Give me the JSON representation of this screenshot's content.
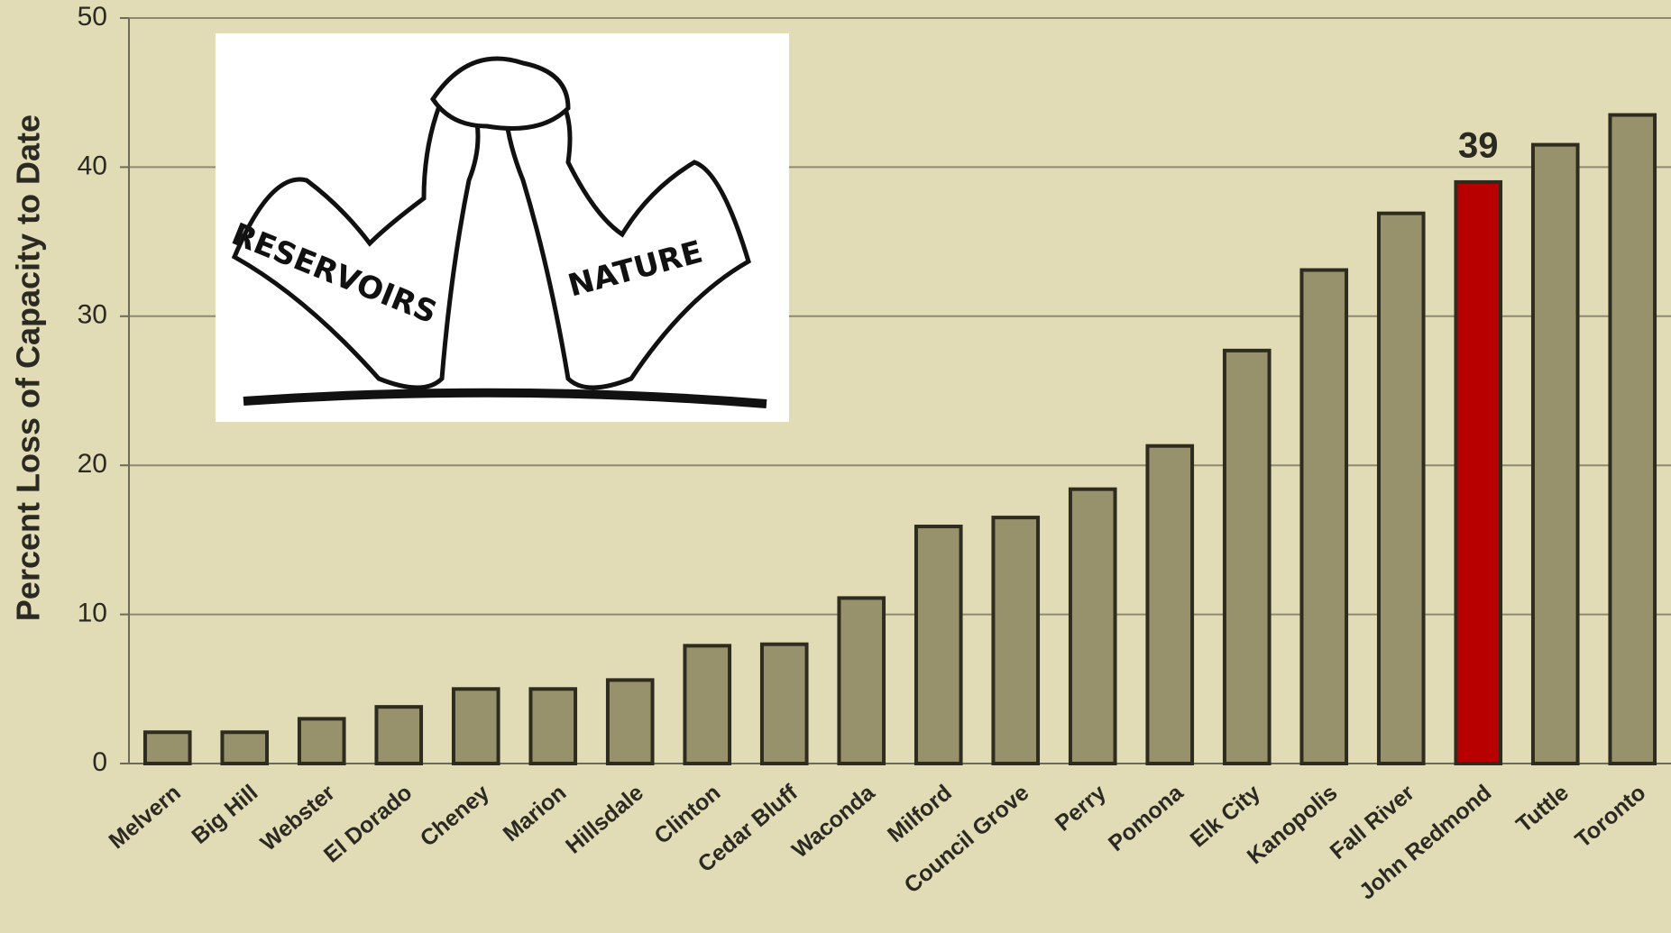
{
  "chart_data": {
    "type": "bar",
    "y_axis_label": "Percent Loss of Capacity to Date",
    "categories": [
      "Melvern",
      "Big Hill",
      "Webster",
      "El Dorado",
      "Cheney",
      "Marion",
      "Hillsdale",
      "Clinton",
      "Cedar Bluff",
      "Waconda",
      "Milford",
      "Council Grove",
      "Perry",
      "Pomona",
      "Elk City",
      "Kanopolis",
      "Fall River",
      "John Redmond",
      "Tuttle",
      "Toronto"
    ],
    "values": [
      2.1,
      2.1,
      3.0,
      3.8,
      5.0,
      5.0,
      5.6,
      7.9,
      8.0,
      11.1,
      15.9,
      16.5,
      18.4,
      21.3,
      27.7,
      33.1,
      36.9,
      39,
      41.5,
      43.5
    ],
    "value_labels": [
      null,
      null,
      null,
      null,
      null,
      null,
      null,
      null,
      null,
      null,
      null,
      null,
      null,
      null,
      null,
      null,
      null,
      "39",
      null,
      null
    ],
    "colors": [
      "#97916c",
      "#97916c",
      "#97916c",
      "#97916c",
      "#97916c",
      "#97916c",
      "#97916c",
      "#97916c",
      "#97916c",
      "#97916c",
      "#97916c",
      "#97916c",
      "#97916c",
      "#97916c",
      "#97916c",
      "#97916c",
      "#97916c",
      "#b80000",
      "#97916c",
      "#97916c"
    ],
    "ylim": [
      0,
      50
    ],
    "yticks": [
      0,
      10,
      20,
      30,
      40,
      50
    ],
    "grid": true
  },
  "image": {
    "labels": [
      "RESERVOIRS",
      "NATURE"
    ]
  }
}
